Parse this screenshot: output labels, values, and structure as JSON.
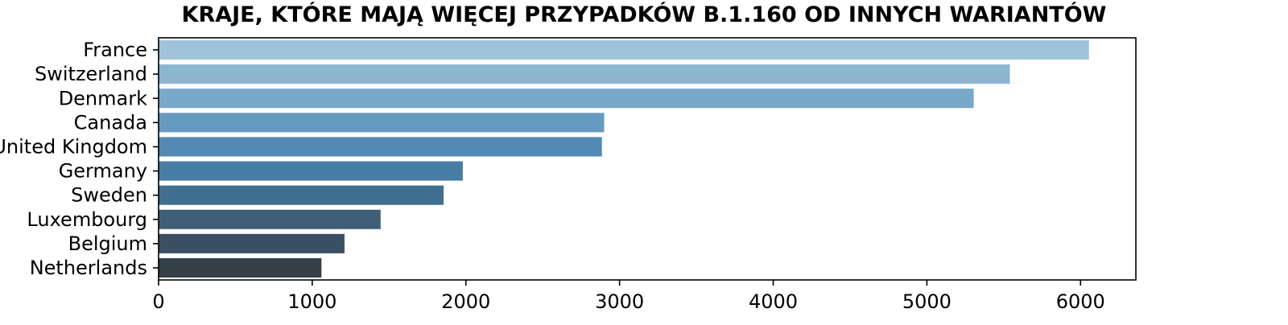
{
  "chart_data": {
    "type": "bar",
    "orientation": "horizontal",
    "title": "KRAJE, KTÓRE MAJĄ WIĘCEJ PRZYPADKÓW B.1.160 OD INNYCH WARIANTÓW",
    "xlabel": "",
    "ylabel": "",
    "categories": [
      "France",
      "Switzerland",
      "Denmark",
      "Canada",
      "United Kingdom",
      "Germany",
      "Sweden",
      "Luxembourg",
      "Belgium",
      "Netherlands"
    ],
    "values": [
      6055,
      5540,
      5305,
      2900,
      2885,
      1980,
      1855,
      1445,
      1210,
      1060
    ],
    "xlim": [
      0,
      6360
    ],
    "xticks": [
      0,
      1000,
      2000,
      3000,
      4000,
      5000,
      6000
    ],
    "xtick_labels": [
      "0",
      "1000",
      "2000",
      "3000",
      "4000",
      "5000",
      "6000"
    ],
    "grid": false,
    "colors": [
      "#a0c3da",
      "#8cb5d0",
      "#7aa8c8",
      "#659bc0",
      "#528ab4",
      "#477ea6",
      "#416f8f",
      "#405f76",
      "#3a4f63",
      "#343f47"
    ]
  }
}
